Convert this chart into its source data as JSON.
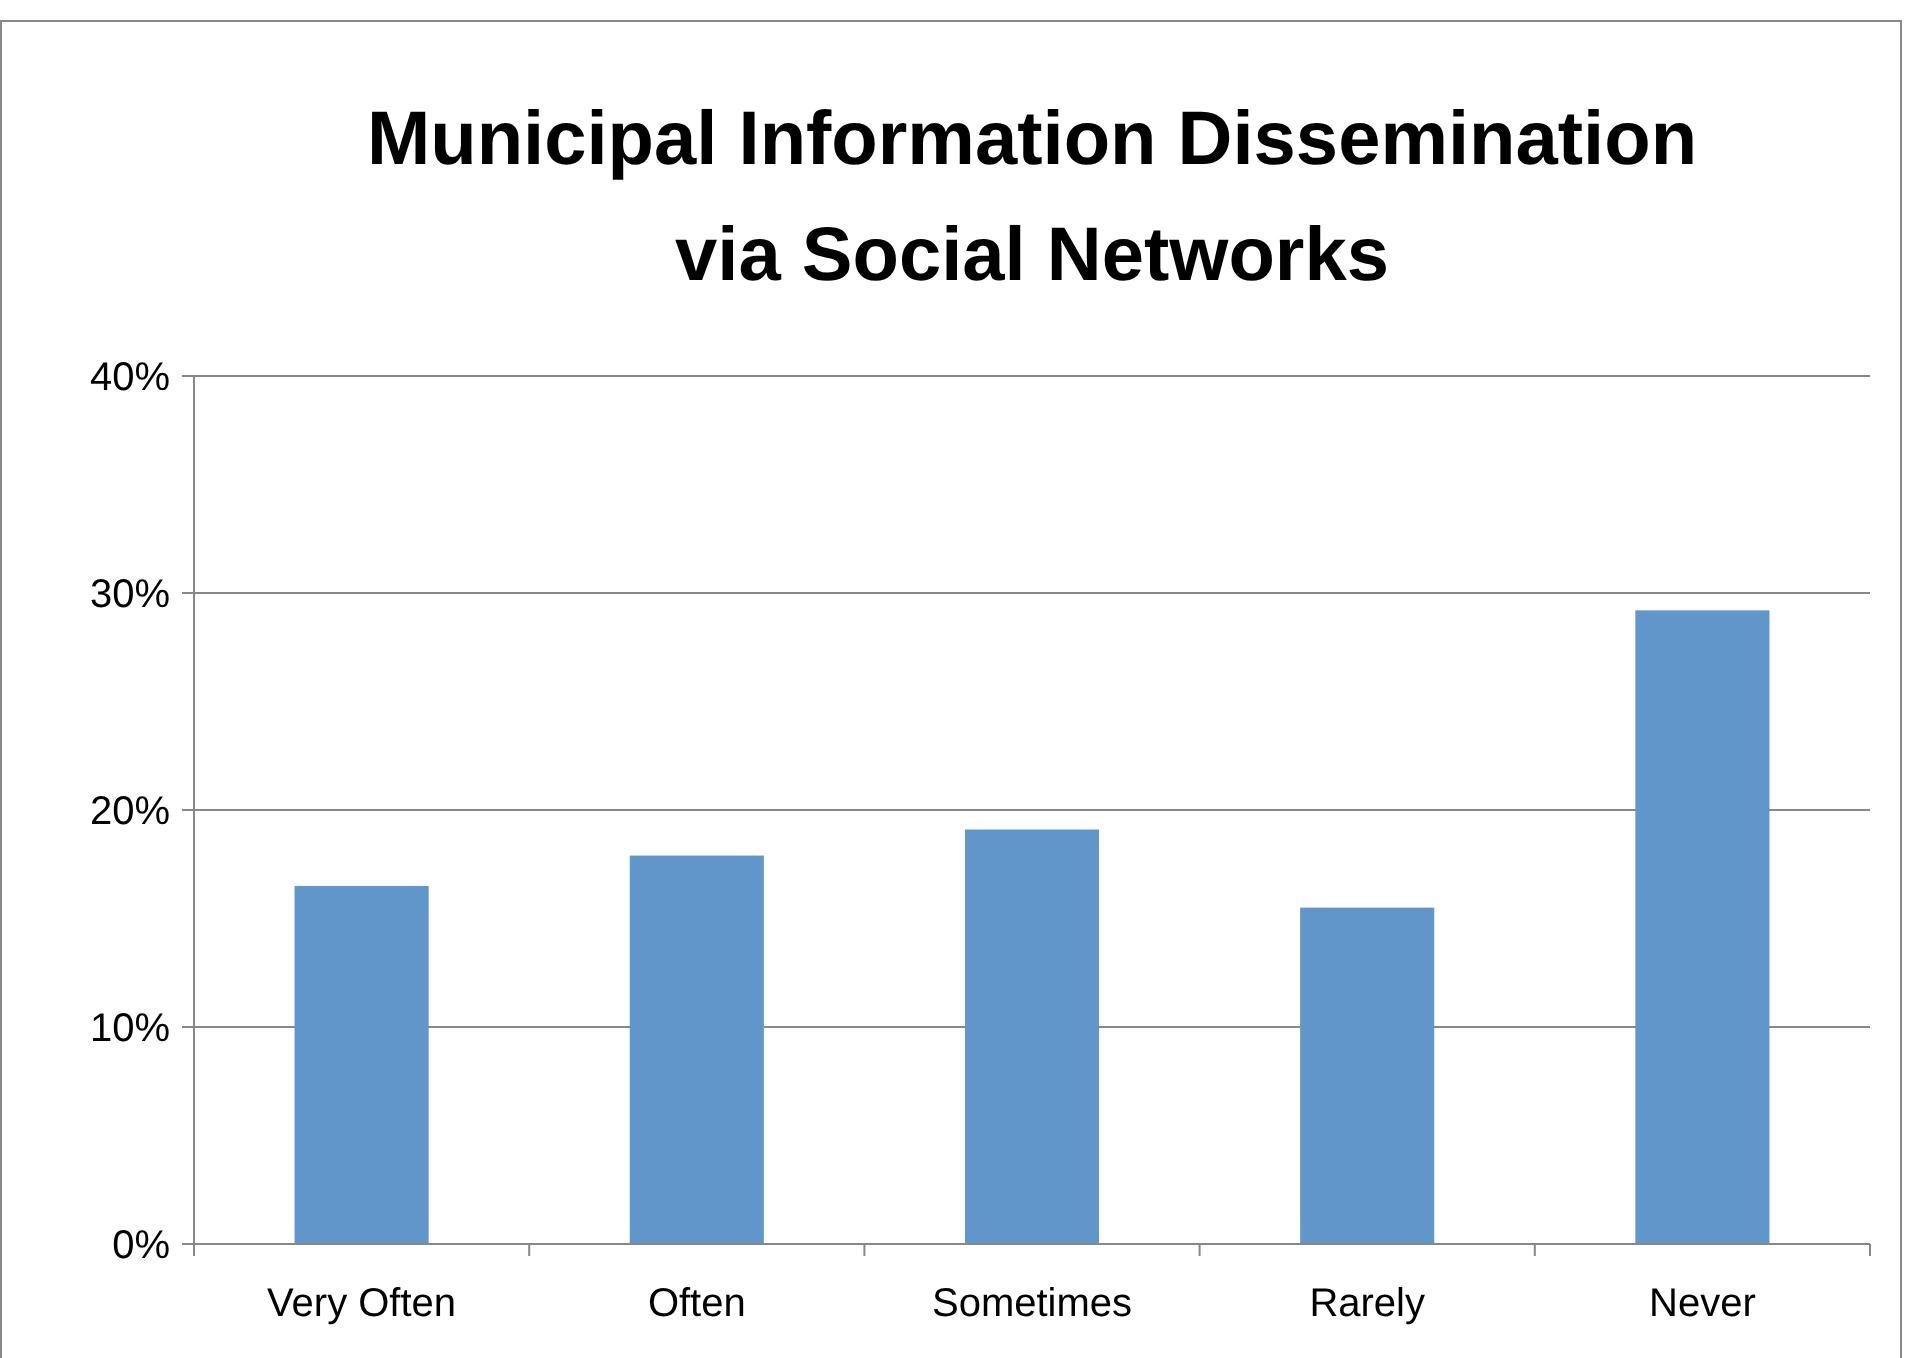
{
  "chart_data": {
    "type": "bar",
    "title": "Municipal Information Dissemination via Social Networks",
    "categories": [
      "Very Often",
      "Often",
      "Sometimes",
      "Rarely",
      "Never"
    ],
    "values": [
      16.5,
      17.9,
      19.1,
      15.5,
      29.2
    ],
    "color": "#6096c9",
    "ylim": [
      0,
      40
    ],
    "yticks": [
      {
        "value": 0,
        "label": "0%"
      },
      {
        "value": 10,
        "label": "10%"
      },
      {
        "value": 20,
        "label": "20%"
      },
      {
        "value": 30,
        "label": "30%"
      },
      {
        "value": 40,
        "label": "40%"
      }
    ],
    "grid": "y"
  }
}
